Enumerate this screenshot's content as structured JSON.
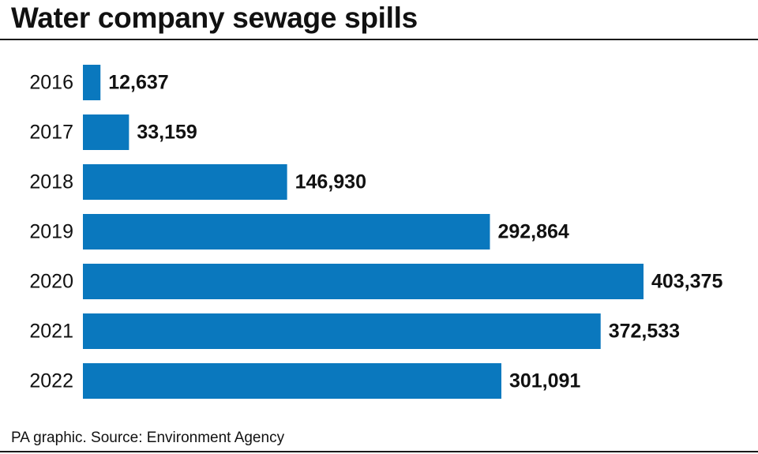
{
  "title": "Water company sewage spills",
  "footer": "PA graphic. Source: Environment Agency",
  "colors": {
    "bar": "#0a78be",
    "text": "#111111"
  },
  "chart_data": {
    "type": "bar",
    "orientation": "horizontal",
    "title": "Water company sewage spills",
    "categories": [
      "2016",
      "2017",
      "2018",
      "2019",
      "2020",
      "2021",
      "2022"
    ],
    "values": [
      12637,
      33159,
      146930,
      292864,
      403375,
      372533,
      301091
    ],
    "value_labels": [
      "12,637",
      "33,159",
      "146,930",
      "292,864",
      "403,375",
      "372,533",
      "301,091"
    ],
    "xlabel": "",
    "ylabel": "",
    "grid": false,
    "legend": "none"
  }
}
